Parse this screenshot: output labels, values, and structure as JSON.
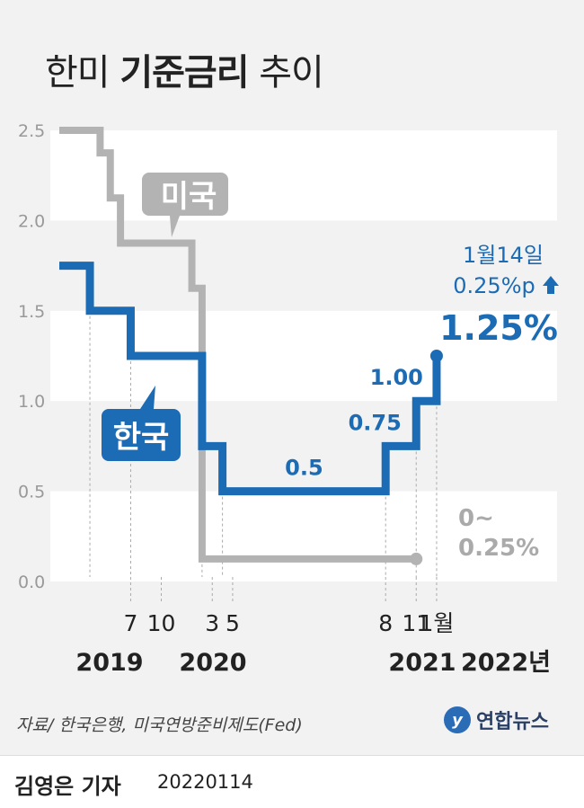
{
  "title": {
    "light_1": "한미 ",
    "bold": "기준금리",
    "light_2": " 추이"
  },
  "source": "자료/ 한국은행, 미국연방준비제도(Fed)",
  "logo": {
    "mark": "y",
    "text": "연합뉴스"
  },
  "footer": {
    "reporter": "김영은 기자",
    "date": "20220114"
  },
  "colors": {
    "korea": "#1b6bb5",
    "us": "#b3b3b3",
    "band": "#ffffff",
    "background": "#f2f2f2"
  },
  "chart_data": {
    "type": "line",
    "title": "",
    "xlabel": "",
    "ylabel": "",
    "ylim": [
      0,
      2.5
    ],
    "yticks": [
      "0.0",
      "0.5",
      "1.0",
      "1.5",
      "2.0",
      "2.5"
    ],
    "step": true,
    "grid": "alternating horizontal bands",
    "x_tick_labels": [
      {
        "month": 7,
        "label": "7",
        "year": "2019"
      },
      {
        "month": 10,
        "label": "10",
        "year": ""
      },
      {
        "month": 15,
        "label": "3",
        "year": "2020"
      },
      {
        "month": 17,
        "label": "5",
        "year": ""
      },
      {
        "month": 32,
        "label": "8",
        "year": "2021"
      },
      {
        "month": 35,
        "label": "11",
        "year": ""
      },
      {
        "month": 37,
        "label": "1월",
        "year": "2022년"
      }
    ],
    "series": [
      {
        "name": "미국",
        "color": "#b3b3b3",
        "points": [
          [
            0,
            2.5
          ],
          [
            4,
            2.375
          ],
          [
            5,
            2.125
          ],
          [
            6,
            1.875
          ],
          [
            9,
            1.875
          ],
          [
            13,
            1.625
          ],
          [
            14,
            0.125
          ],
          [
            35,
            0.125
          ]
        ],
        "endpoint": [
          35,
          0.125
        ],
        "end_label": [
          "0~",
          "0.25%"
        ]
      },
      {
        "name": "한국",
        "color": "#1b6bb5",
        "points": [
          [
            0,
            1.75
          ],
          [
            3,
            1.5
          ],
          [
            7,
            1.25
          ],
          [
            11,
            1.25
          ],
          [
            14,
            0.75
          ],
          [
            16,
            0.5
          ],
          [
            32,
            0.75
          ],
          [
            35,
            1.0
          ],
          [
            37,
            1.25
          ]
        ],
        "endpoint": [
          37,
          1.25
        ],
        "value_labels": [
          {
            "text": "0.5",
            "x": 24,
            "y": 0.5
          },
          {
            "text": "0.75",
            "x": 32,
            "y": 0.75
          },
          {
            "text": "1.00",
            "x": 35,
            "y": 1.0
          }
        ]
      }
    ],
    "annotation": {
      "line1": "1월14일",
      "line2": "0.25%p",
      "arrow": "up-arrow-icon",
      "value": "1.25%"
    }
  }
}
